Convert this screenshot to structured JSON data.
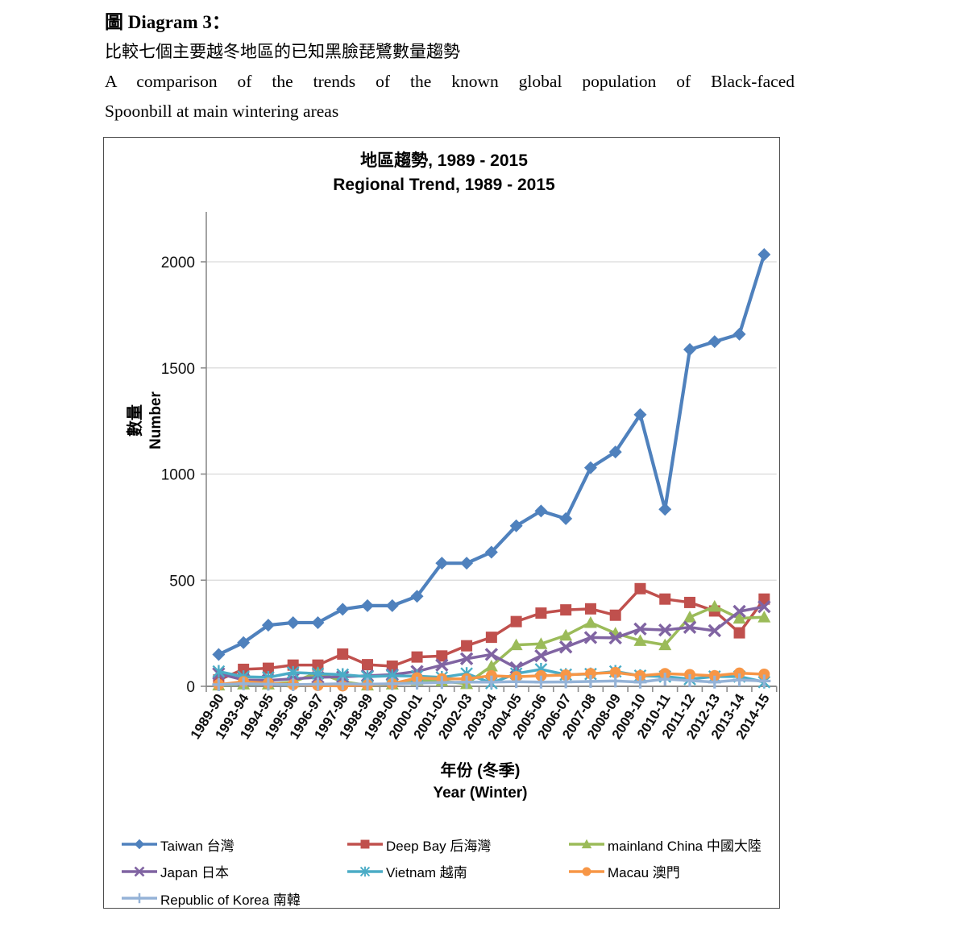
{
  "header": {
    "diagram_label": "圖 Diagram 3：",
    "subtitle_zh": "比較七個主要越冬地區的已知黑臉琵鷺數量趨勢",
    "subtitle_en_1": "A comparison of the trends of the known global population of Black-faced",
    "subtitle_en_2": "Spoonbill at main wintering areas"
  },
  "chart_data": {
    "type": "line",
    "title_zh": "地區趨勢, 1989 - 2015",
    "title_en": "Regional Trend, 1989 - 2015",
    "ylabel_zh": "數量",
    "ylabel_en": "Number",
    "xlabel_zh": "年份 (冬季)",
    "xlabel_en": "Year (Winter)",
    "ylim": [
      0,
      2200
    ],
    "yticks": [
      0,
      500,
      1000,
      1500,
      2000
    ],
    "grid": "horizontal",
    "legend_position": "bottom-left",
    "axis_color": "#8c8c8c",
    "gridline_color": "#d9d9d9",
    "categories": [
      "1989-90",
      "1993-94",
      "1994-95",
      "1995-96",
      "1996-97",
      "1997-98",
      "1998-99",
      "1999-00",
      "2000-01",
      "2001-02",
      "2002-03",
      "2003-04",
      "2004-05",
      "2005-06",
      "2006-07",
      "2007-08",
      "2008-09",
      "2009-10",
      "2010-11",
      "2011-12",
      "2012-13",
      "2013-14",
      "2014-15"
    ],
    "series": [
      {
        "name": "Taiwan 台灣",
        "color": "#4F81BD",
        "marker": "diamond",
        "values": [
          150,
          206,
          288,
          300,
          300,
          363,
          380,
          380,
          424,
          580,
          580,
          632,
          756,
          826,
          790,
          1030,
          1104,
          1280,
          834,
          1587,
          1624,
          1659,
          2034
        ]
      },
      {
        "name": "Deep Bay 后海灣",
        "color": "#C0504D",
        "marker": "square",
        "values": [
          30,
          80,
          85,
          100,
          100,
          152,
          102,
          95,
          138,
          143,
          191,
          231,
          305,
          345,
          360,
          365,
          335,
          460,
          411,
          395,
          355,
          252,
          411
        ]
      },
      {
        "name": "mainland China 中國大陸",
        "color": "#9BBB59",
        "marker": "triangle",
        "values": [
          5,
          10,
          10,
          20,
          65,
          22,
          5,
          10,
          30,
          25,
          12,
          95,
          195,
          200,
          240,
          300,
          250,
          215,
          195,
          326,
          376,
          320,
          326
        ]
      },
      {
        "name": "Japan 日本",
        "color": "#8064A2",
        "marker": "x",
        "values": [
          60,
          30,
          28,
          35,
          42,
          45,
          50,
          55,
          70,
          100,
          130,
          150,
          87,
          144,
          185,
          230,
          228,
          270,
          265,
          278,
          262,
          353,
          375
        ]
      },
      {
        "name": "Vietnam 越南",
        "color": "#4BACC6",
        "marker": "star",
        "values": [
          70,
          45,
          42,
          65,
          60,
          55,
          45,
          50,
          48,
          42,
          60,
          15,
          60,
          80,
          55,
          58,
          70,
          50,
          46,
          34,
          46,
          46,
          20
        ]
      },
      {
        "name": "Macau 澳門",
        "color": "#F79646",
        "marker": "circle",
        "values": [
          8,
          22,
          15,
          8,
          4,
          2,
          6,
          12,
          40,
          35,
          35,
          50,
          45,
          50,
          53,
          60,
          65,
          50,
          60,
          55,
          50,
          62,
          57
        ]
      },
      {
        "name": "Republic of Korea 南韓",
        "color": "#95B3D7",
        "marker": "plus",
        "values": [
          8,
          12,
          10,
          8,
          10,
          12,
          10,
          12,
          15,
          18,
          20,
          20,
          22,
          20,
          21,
          23,
          25,
          20,
          34,
          27,
          20,
          30,
          25
        ]
      }
    ]
  }
}
